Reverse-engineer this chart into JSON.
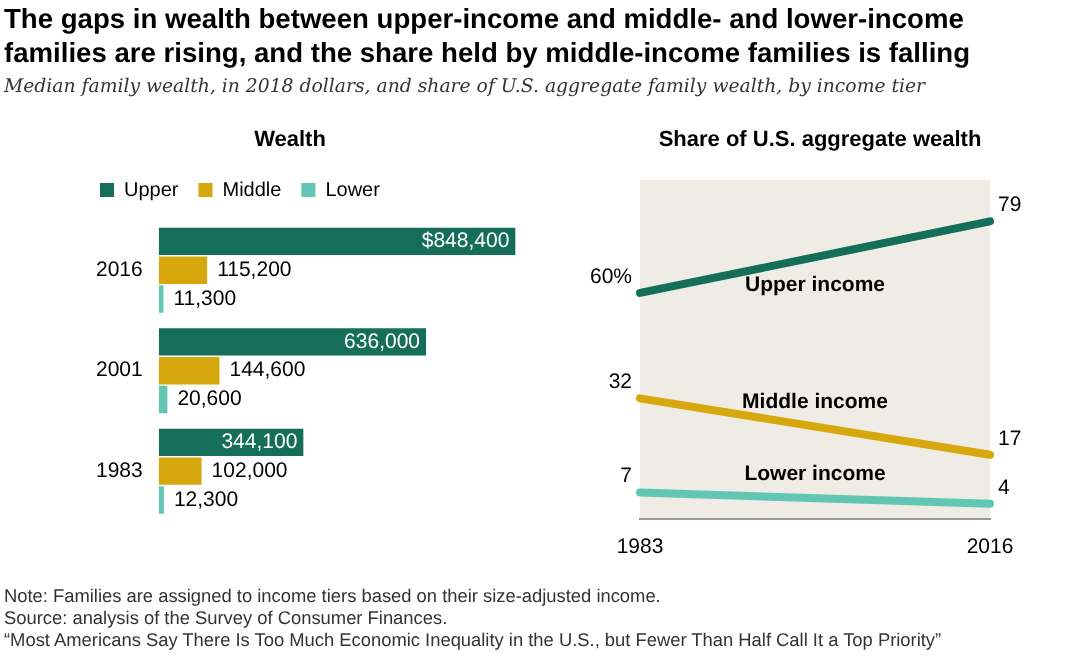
{
  "chart_data": [
    {
      "type": "bar",
      "orientation": "horizontal",
      "title": "The gaps in wealth between upper-income and middle- and lower-income families are rising, and the share held by middle-income families is falling",
      "subtitle": "Median family wealth, in 2018 dollars, and share of U.S. aggregate family wealth, by income tier",
      "annotations": [
        "Wealth"
      ],
      "categories": [
        "2016",
        "2001",
        "1983"
      ],
      "xlim": [
        0,
        850000
      ],
      "tick_labels": "y",
      "legend": "top left",
      "grid": false,
      "series": [
        {
          "name": "Upper",
          "color": "#146e5a",
          "values": [
            848400,
            636000,
            344100
          ],
          "value_labels": [
            "$848,400",
            "636,000",
            "344,100"
          ]
        },
        {
          "name": "Middle",
          "color": "#d6a80d",
          "values": [
            115200,
            144600,
            102000
          ],
          "value_labels": [
            "115,200",
            "144,600",
            "102,000"
          ]
        },
        {
          "name": "Lower",
          "color": "#62c6b4",
          "values": [
            11300,
            20600,
            12300
          ],
          "value_labels": [
            "11,300",
            "20,600",
            "12,300"
          ]
        }
      ]
    },
    {
      "type": "line",
      "title": "Share of U.S. aggregate wealth",
      "categories": [
        "1983",
        "2016"
      ],
      "bands": [
        {
          "axis": "x",
          "from": "1983",
          "to": "2016",
          "color": "#eeece4"
        }
      ],
      "tick_labels": "x",
      "legend": false,
      "grid": false,
      "marker": "none",
      "line_style": "solid",
      "annotations": [
        "Note: Families are assigned to income tiers based on their size-adjusted income.",
        "Source: analysis of the Survey of Consumer Finances.",
        "“Most Americans Say There Is Too Much Economic Inequality in the U.S., but Fewer Than Half Call It a Top Priority”"
      ],
      "series": [
        {
          "name": "Upper income",
          "color": "#146e5a",
          "values": [
            60,
            79
          ],
          "value_labels": [
            "60%",
            "79"
          ]
        },
        {
          "name": "Middle income",
          "color": "#d6a80d",
          "values": [
            32,
            17
          ],
          "value_labels": [
            "32",
            "17"
          ]
        },
        {
          "name": "Lower income",
          "color": "#62c6b4",
          "values": [
            7,
            4
          ],
          "value_labels": [
            "7",
            "4"
          ]
        }
      ]
    }
  ]
}
